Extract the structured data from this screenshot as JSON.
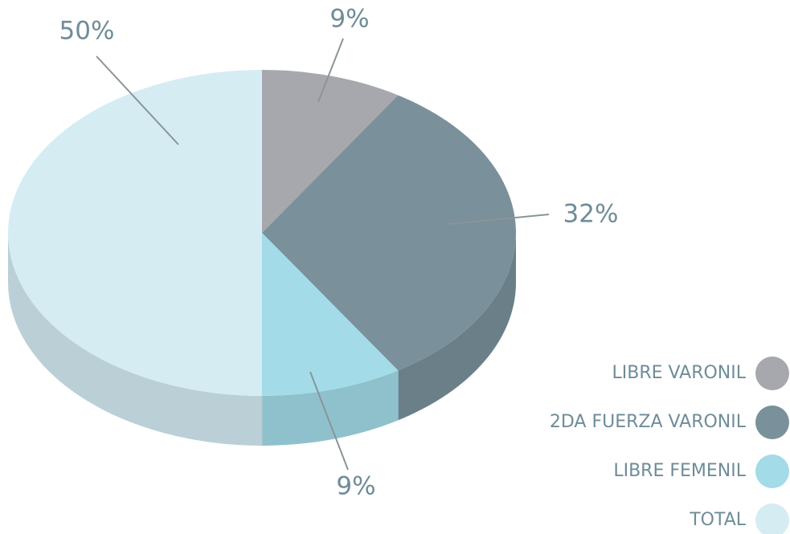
{
  "chart_data": {
    "type": "pie",
    "categories": [
      "LIBRE VARONIL",
      "2DA FUERZA VARONIL",
      "LIBRE FEMENIL",
      "TOTAL"
    ],
    "values": [
      9,
      32,
      9,
      50
    ],
    "value_labels": [
      "9%",
      "32%",
      "9%",
      "50%"
    ],
    "colors": [
      "#a7a8ad",
      "#7a909a",
      "#a3dbe8",
      "#d5ecf3"
    ],
    "legend": "right"
  }
}
